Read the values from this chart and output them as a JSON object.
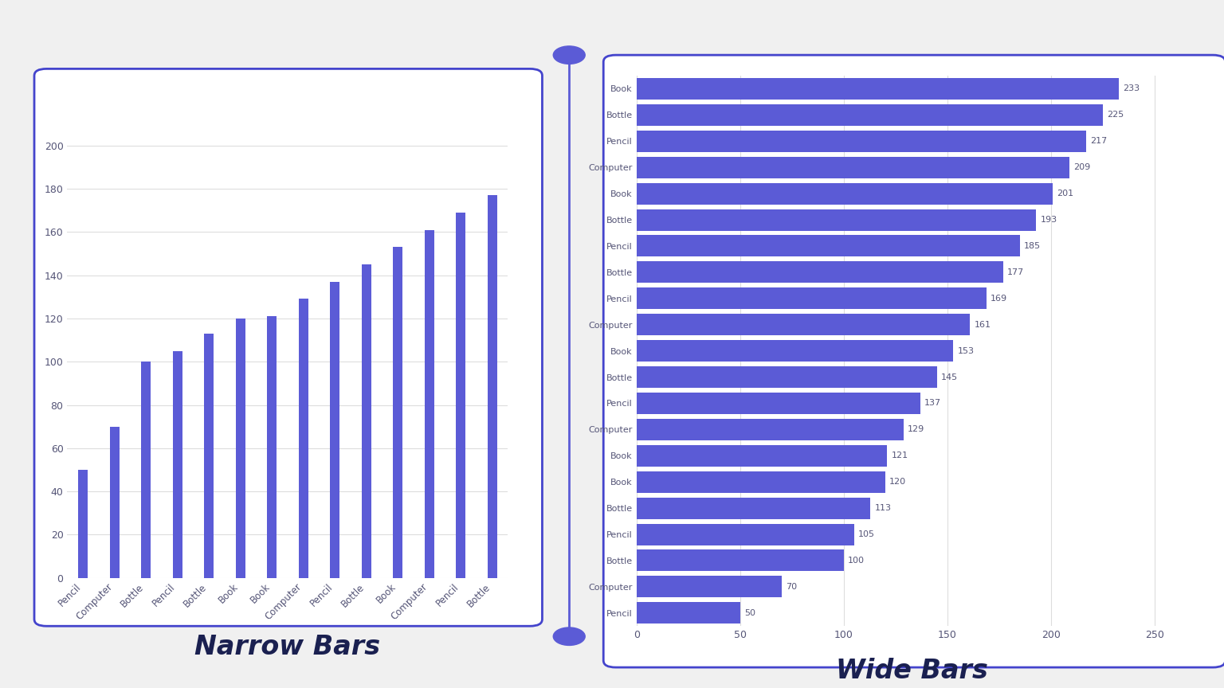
{
  "narrow_categories": [
    "Pencil",
    "Computer",
    "Bottle",
    "Pencil",
    "Bottle",
    "Book",
    "Book",
    "Computer",
    "Pencil",
    "Bottle",
    "Book",
    "Computer",
    "Pencil",
    "Bottle"
  ],
  "narrow_values": [
    50,
    70,
    100,
    105,
    113,
    120,
    121,
    129,
    137,
    145,
    153,
    161,
    169,
    177
  ],
  "wide_categories": [
    "Book",
    "Bottle",
    "Pencil",
    "Computer",
    "Book",
    "Bottle",
    "Pencil",
    "Bottle",
    "Pencil",
    "Computer",
    "Book",
    "Bottle",
    "Pencil",
    "Computer",
    "Book",
    "Book",
    "Bottle",
    "Pencil",
    "Bottle",
    "Computer",
    "Pencil"
  ],
  "wide_values": [
    233,
    225,
    217,
    209,
    201,
    193,
    185,
    177,
    169,
    161,
    153,
    145,
    137,
    129,
    121,
    120,
    113,
    105,
    100,
    70,
    50
  ],
  "bar_color": "#5b5bd6",
  "background_color": "#f0f0f0",
  "panel_color": "#ffffff",
  "panel_border_color": "#4444cc",
  "tick_color": "#555577",
  "grid_color": "#dddddd",
  "title_left": "Narrow Bars",
  "title_right": "Wide Bars",
  "title_color": "#1a2050",
  "title_fontsize": 24,
  "divider_color": "#5b5bd6",
  "narrow_ylim": [
    0,
    210
  ],
  "wide_xlim": [
    0,
    260
  ],
  "narrow_yticks": [
    0,
    20,
    40,
    60,
    80,
    100,
    120,
    140,
    160,
    180,
    200
  ],
  "wide_xticks": [
    0,
    50,
    100,
    150,
    200,
    250
  ]
}
